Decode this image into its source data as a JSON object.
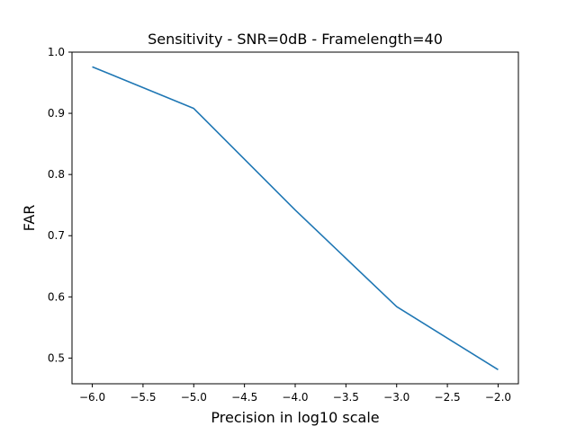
{
  "chart_data": {
    "type": "line",
    "title": "Sensitivity - SNR=0dB - Framelength=40",
    "xlabel": "Precision in log10 scale",
    "ylabel": "FAR",
    "x": [
      -6.0,
      -5.0,
      -4.0,
      -3.0,
      -2.0
    ],
    "series": [
      {
        "values": [
          0.976,
          0.908,
          0.742,
          0.584,
          0.481
        ]
      }
    ],
    "xlim": [
      -6.2,
      -1.8
    ],
    "ylim": [
      0.458,
      1.0
    ],
    "xticks": [
      -6.0,
      -5.5,
      -5.0,
      -4.5,
      -4.0,
      -3.5,
      -3.0,
      -2.5,
      -2.0
    ],
    "xtick_labels": [
      "−6.0",
      "−5.5",
      "−5.0",
      "−4.5",
      "−4.0",
      "−3.5",
      "−3.0",
      "−2.5",
      "−2.0"
    ],
    "yticks": [
      0.5,
      0.6,
      0.7,
      0.8,
      0.9,
      1.0
    ],
    "ytick_labels": [
      "0.5",
      "0.6",
      "0.7",
      "0.8",
      "0.9",
      "1.0"
    ],
    "grid": false,
    "line_color": "#1f77b4"
  }
}
